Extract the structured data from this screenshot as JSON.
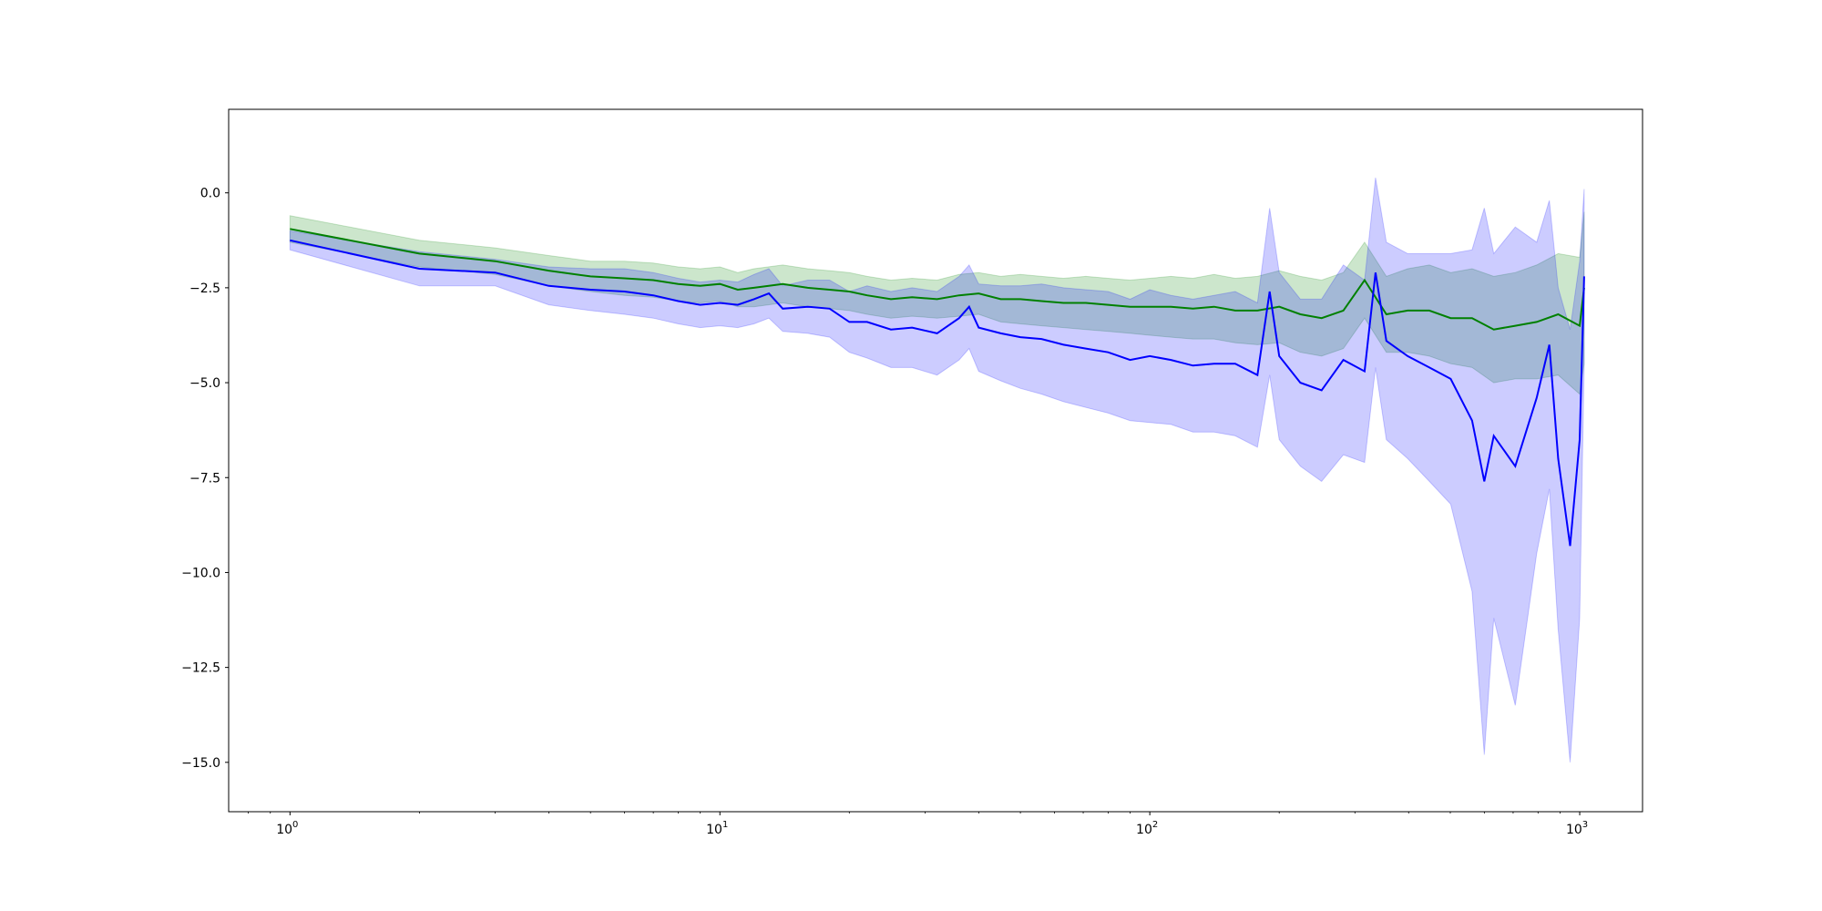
{
  "chart_data": {
    "type": "line",
    "title": "",
    "xlabel": "",
    "ylabel": "",
    "x_scale": "log",
    "xlim": [
      0.72,
      1400
    ],
    "ylim": [
      -16.3,
      2.2
    ],
    "grid": false,
    "legend": "none",
    "x_ticks": [
      {
        "value": 1,
        "label": "10",
        "exp": "0"
      },
      {
        "value": 10,
        "label": "10",
        "exp": "1"
      },
      {
        "value": 100,
        "label": "10",
        "exp": "2"
      },
      {
        "value": 1000,
        "label": "10",
        "exp": "3"
      }
    ],
    "y_ticks": [
      {
        "value": 0,
        "label": "0.0"
      },
      {
        "value": -2.5,
        "label": "−2.5"
      },
      {
        "value": -5,
        "label": "−5.0"
      },
      {
        "value": -7.5,
        "label": "−7.5"
      },
      {
        "value": -10,
        "label": "−10.0"
      },
      {
        "value": -12.5,
        "label": "−12.5"
      },
      {
        "value": -15,
        "label": "−15.0"
      }
    ],
    "series": [
      {
        "color": "#008000",
        "band_color": "#008000",
        "x": [
          1,
          2,
          3,
          4,
          5,
          6,
          7,
          8,
          9,
          10,
          11,
          12,
          14,
          16,
          18,
          20,
          22,
          25,
          28,
          32,
          36,
          40,
          45,
          50,
          56,
          63,
          71,
          80,
          90,
          100,
          112,
          126,
          141,
          158,
          178,
          200,
          224,
          251,
          282,
          316,
          355,
          398,
          447,
          501,
          562,
          631,
          708,
          794,
          891,
          1000,
          1024
        ],
        "y": [
          -0.95,
          -1.6,
          -1.8,
          -2.05,
          -2.2,
          -2.25,
          -2.3,
          -2.4,
          -2.45,
          -2.4,
          -2.55,
          -2.5,
          -2.4,
          -2.5,
          -2.55,
          -2.6,
          -2.7,
          -2.8,
          -2.75,
          -2.8,
          -2.7,
          -2.65,
          -2.8,
          -2.8,
          -2.85,
          -2.9,
          -2.9,
          -2.95,
          -3.0,
          -3.0,
          -3.0,
          -3.05,
          -3.0,
          -3.1,
          -3.1,
          -3.0,
          -3.2,
          -3.3,
          -3.1,
          -2.3,
          -3.2,
          -3.1,
          -3.1,
          -3.3,
          -3.3,
          -3.6,
          -3.5,
          -3.4,
          -3.2,
          -3.5,
          -2.5
        ],
        "lower": [
          -1.3,
          -1.95,
          -2.15,
          -2.45,
          -2.6,
          -2.7,
          -2.75,
          -2.85,
          -2.9,
          -2.85,
          -3.0,
          -3.0,
          -2.9,
          -3.0,
          -3.05,
          -3.1,
          -3.2,
          -3.3,
          -3.25,
          -3.3,
          -3.25,
          -3.2,
          -3.4,
          -3.45,
          -3.5,
          -3.55,
          -3.6,
          -3.65,
          -3.7,
          -3.75,
          -3.8,
          -3.85,
          -3.85,
          -3.95,
          -4.0,
          -3.95,
          -4.2,
          -4.3,
          -4.1,
          -3.3,
          -4.2,
          -4.2,
          -4.3,
          -4.5,
          -4.6,
          -5.0,
          -4.9,
          -4.9,
          -4.8,
          -5.3,
          -4.5
        ],
        "upper": [
          -0.6,
          -1.25,
          -1.45,
          -1.65,
          -1.8,
          -1.8,
          -1.85,
          -1.95,
          -2.0,
          -1.95,
          -2.1,
          -2.0,
          -1.9,
          -2.0,
          -2.05,
          -2.1,
          -2.2,
          -2.3,
          -2.25,
          -2.3,
          -2.15,
          -2.1,
          -2.2,
          -2.15,
          -2.2,
          -2.25,
          -2.2,
          -2.25,
          -2.3,
          -2.25,
          -2.2,
          -2.25,
          -2.15,
          -2.25,
          -2.2,
          -2.05,
          -2.2,
          -2.3,
          -2.1,
          -1.3,
          -2.2,
          -2.0,
          -1.9,
          -2.1,
          -2.0,
          -2.2,
          -2.1,
          -1.9,
          -1.6,
          -1.7,
          -0.5
        ]
      },
      {
        "color": "#0000ff",
        "band_color": "#0000ff",
        "x": [
          1,
          2,
          3,
          4,
          5,
          6,
          7,
          8,
          9,
          10,
          11,
          12,
          13,
          14,
          16,
          18,
          20,
          22,
          25,
          28,
          32,
          36,
          38,
          40,
          45,
          50,
          56,
          63,
          71,
          80,
          90,
          100,
          112,
          126,
          141,
          158,
          178,
          190,
          200,
          224,
          251,
          282,
          316,
          335,
          355,
          398,
          447,
          501,
          562,
          600,
          631,
          708,
          794,
          850,
          891,
          950,
          1000,
          1024
        ],
        "y": [
          -1.25,
          -2.0,
          -2.1,
          -2.45,
          -2.55,
          -2.6,
          -2.7,
          -2.85,
          -2.95,
          -2.9,
          -2.95,
          -2.8,
          -2.65,
          -3.05,
          -3.0,
          -3.05,
          -3.4,
          -3.4,
          -3.6,
          -3.55,
          -3.7,
          -3.3,
          -3.0,
          -3.55,
          -3.7,
          -3.8,
          -3.85,
          -4.0,
          -4.1,
          -4.2,
          -4.4,
          -4.3,
          -4.4,
          -4.55,
          -4.5,
          -4.5,
          -4.8,
          -2.6,
          -4.3,
          -5.0,
          -5.2,
          -4.4,
          -4.7,
          -2.1,
          -3.9,
          -4.3,
          -4.6,
          -4.9,
          -6.0,
          -7.6,
          -6.4,
          -7.2,
          -5.4,
          -4.0,
          -7.0,
          -9.3,
          -6.5,
          -2.2
        ],
        "lower": [
          -1.5,
          -2.45,
          -2.45,
          -2.95,
          -3.1,
          -3.2,
          -3.3,
          -3.45,
          -3.55,
          -3.5,
          -3.55,
          -3.45,
          -3.3,
          -3.65,
          -3.7,
          -3.8,
          -4.2,
          -4.35,
          -4.6,
          -4.6,
          -4.8,
          -4.4,
          -4.1,
          -4.7,
          -4.95,
          -5.15,
          -5.3,
          -5.5,
          -5.65,
          -5.8,
          -6.0,
          -6.05,
          -6.1,
          -6.3,
          -6.3,
          -6.4,
          -6.7,
          -4.8,
          -6.5,
          -7.2,
          -7.6,
          -6.9,
          -7.1,
          -4.6,
          -6.5,
          -7.0,
          -7.6,
          -8.2,
          -10.5,
          -14.8,
          -11.2,
          -13.5,
          -9.5,
          -7.8,
          -11.5,
          -15.0,
          -11.2,
          -4.5
        ],
        "upper": [
          -1.0,
          -1.55,
          -1.75,
          -1.95,
          -2.0,
          -2.0,
          -2.1,
          -2.25,
          -2.35,
          -2.3,
          -2.35,
          -2.15,
          -2.0,
          -2.45,
          -2.3,
          -2.3,
          -2.6,
          -2.45,
          -2.6,
          -2.5,
          -2.6,
          -2.2,
          -1.9,
          -2.4,
          -2.45,
          -2.45,
          -2.4,
          -2.5,
          -2.55,
          -2.6,
          -2.8,
          -2.55,
          -2.7,
          -2.8,
          -2.7,
          -2.6,
          -2.9,
          -0.4,
          -2.1,
          -2.8,
          -2.8,
          -1.9,
          -2.3,
          0.4,
          -1.3,
          -1.6,
          -1.6,
          -1.6,
          -1.5,
          -0.4,
          -1.6,
          -0.9,
          -1.3,
          -0.2,
          -2.5,
          -3.6,
          -1.8,
          0.1
        ]
      }
    ]
  }
}
